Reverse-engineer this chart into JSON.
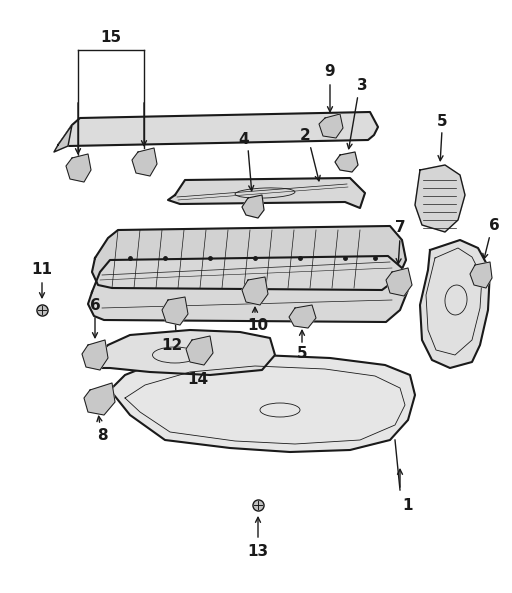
{
  "bg_color": "#ffffff",
  "line_color": "#1a1a1a",
  "fig_width": 5.12,
  "fig_height": 5.93,
  "dpi": 100,
  "parts": {
    "label_fontsize": 11,
    "label_color": "#1a1a1a"
  }
}
